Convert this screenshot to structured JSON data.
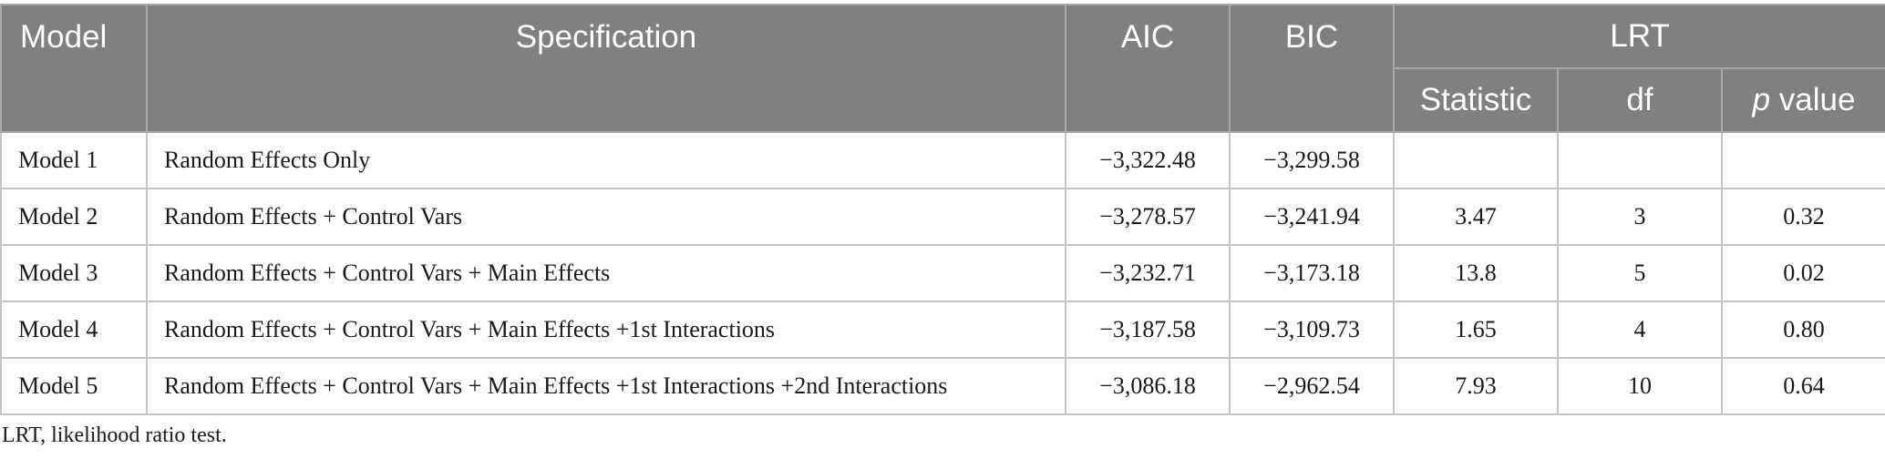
{
  "table": {
    "headers": {
      "model": "Model",
      "specification": "Specification",
      "aic": "AIC",
      "bic": "BIC",
      "lrt": "LRT",
      "statistic": "Statistic",
      "df": "df",
      "p_italic": "p",
      "p_rest": " value"
    },
    "rows": [
      {
        "model": "Model 1",
        "spec": "Random Effects Only",
        "aic": "−3,322.48",
        "bic": "−3,299.58",
        "stat": "",
        "df": "",
        "p": ""
      },
      {
        "model": "Model 2",
        "spec": "Random Effects + Control Vars",
        "aic": "−3,278.57",
        "bic": "−3,241.94",
        "stat": "3.47",
        "df": "3",
        "p": "0.32"
      },
      {
        "model": "Model 3",
        "spec": "Random Effects + Control Vars + Main Effects",
        "aic": "−3,232.71",
        "bic": "−3,173.18",
        "stat": "13.8",
        "df": "5",
        "p": "0.02"
      },
      {
        "model": "Model 4",
        "spec": "Random Effects + Control Vars + Main Effects +1st Interactions",
        "aic": "−3,187.58",
        "bic": "−3,109.73",
        "stat": "1.65",
        "df": "4",
        "p": "0.80"
      },
      {
        "model": "Model 5",
        "spec": "Random Effects + Control Vars + Main Effects +1st Interactions +2nd Interactions",
        "aic": "−3,086.18",
        "bic": "−2,962.54",
        "stat": "7.93",
        "df": "10",
        "p": "0.64"
      }
    ]
  },
  "footnote": "LRT, likelihood ratio test."
}
